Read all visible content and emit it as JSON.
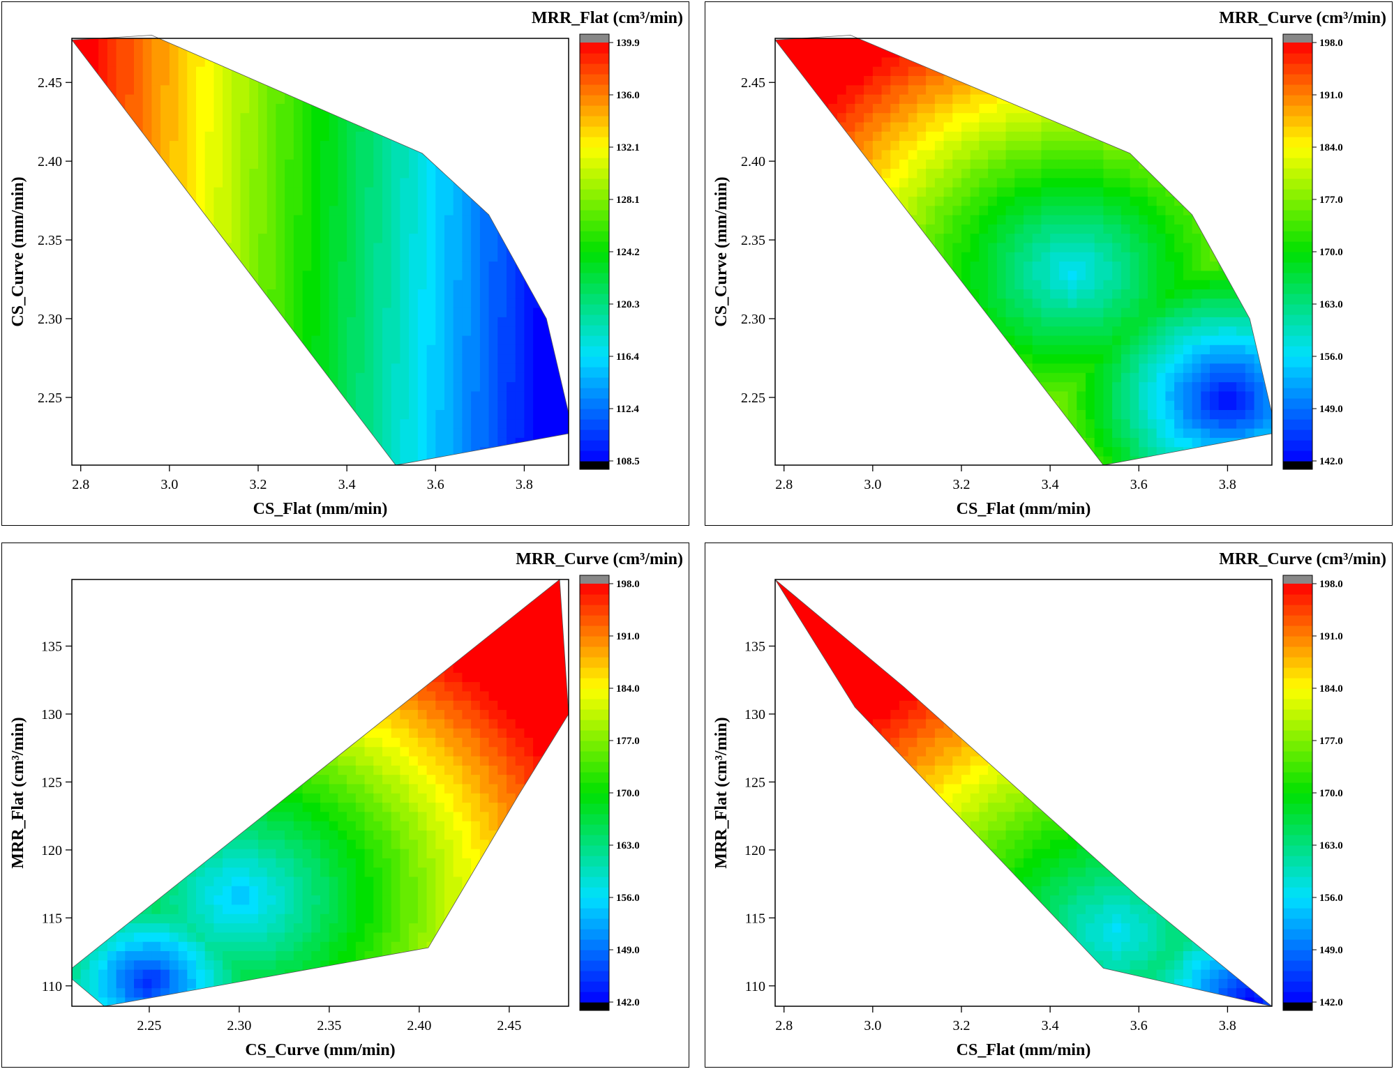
{
  "chart_data": [
    {
      "type": "heatmap",
      "subtype": "filled-contour",
      "title": "MRR_Flat (cm³/min)",
      "xlabel": "CS_Flat (mm/min)",
      "ylabel": "CS_Curve (mm/min)",
      "xlim": [
        2.78,
        3.9
      ],
      "ylim": [
        2.207,
        2.478
      ],
      "xticks": [
        "2.8",
        "3.0",
        "3.2",
        "3.4",
        "3.6",
        "3.8"
      ],
      "yticks": [
        "2.25",
        "2.30",
        "2.35",
        "2.40",
        "2.45"
      ],
      "colorbar": {
        "min": 108.5,
        "max": 139.9,
        "ticks": [
          "108.5",
          "112.4",
          "116.4",
          "120.3",
          "124.2",
          "128.1",
          "132.1",
          "136.0",
          "139.9"
        ]
      },
      "boundary": [
        [
          2.78,
          2.477
        ],
        [
          2.96,
          2.48
        ],
        [
          3.57,
          2.405
        ],
        [
          3.72,
          2.366
        ],
        [
          3.85,
          2.3
        ],
        [
          3.9,
          2.24
        ],
        [
          3.9,
          2.227
        ],
        [
          3.51,
          2.207
        ]
      ],
      "field": {
        "model": "linear",
        "base": 125.0,
        "gx": -30.0,
        "gy": 5.0,
        "x0": 3.3,
        "y0": 2.35
      },
      "colormap": [
        "#0000ff",
        "#00e0ff",
        "#00e000",
        "#ffff00",
        "#ff0000"
      ]
    },
    {
      "type": "heatmap",
      "subtype": "filled-contour",
      "title": "MRR_Curve (cm³/min)",
      "xlabel": "CS_Flat (mm/min)",
      "ylabel": "CS_Curve (mm/min)",
      "xlim": [
        2.78,
        3.9
      ],
      "ylim": [
        2.207,
        2.478
      ],
      "xticks": [
        "2.8",
        "3.0",
        "3.2",
        "3.4",
        "3.6",
        "3.8"
      ],
      "yticks": [
        "2.25",
        "2.30",
        "2.35",
        "2.40",
        "2.45"
      ],
      "colorbar": {
        "min": 142.0,
        "max": 198.0,
        "ticks": [
          "142.0",
          "149.0",
          "156.0",
          "163.0",
          "170.0",
          "177.0",
          "184.0",
          "191.0",
          "198.0"
        ]
      },
      "boundary": [
        [
          2.78,
          2.477
        ],
        [
          2.95,
          2.48
        ],
        [
          3.58,
          2.405
        ],
        [
          3.72,
          2.366
        ],
        [
          3.85,
          2.3
        ],
        [
          3.9,
          2.24
        ],
        [
          3.9,
          2.227
        ],
        [
          3.52,
          2.207
        ]
      ],
      "field": {
        "model": "blob",
        "base": 198.0,
        "falloff": 0.35,
        "centers": [
          [
            3.45,
            2.33,
            42.0,
            0.28
          ],
          [
            3.8,
            2.25,
            56.0,
            0.2
          ]
        ]
      },
      "colormap": [
        "#0000ff",
        "#00e0ff",
        "#00e000",
        "#ffff00",
        "#ff0000"
      ]
    },
    {
      "type": "heatmap",
      "subtype": "filled-contour",
      "title": "MRR_Curve (cm³/min)",
      "xlabel": "CS_Curve (mm/min)",
      "ylabel": "MRR_Flat (cm³/min)",
      "xlim": [
        2.207,
        2.483
      ],
      "ylim": [
        108.5,
        139.9
      ],
      "xticks": [
        "2.25",
        "2.30",
        "2.35",
        "2.40",
        "2.45"
      ],
      "yticks": [
        "110",
        "115",
        "120",
        "125",
        "130",
        "135"
      ],
      "colorbar": {
        "min": 142.0,
        "max": 198.0,
        "ticks": [
          "142.0",
          "149.0",
          "156.0",
          "163.0",
          "170.0",
          "177.0",
          "184.0",
          "191.0",
          "198.0"
        ]
      },
      "boundary": [
        [
          2.207,
          111.3
        ],
        [
          2.478,
          139.9
        ],
        [
          2.483,
          130.0
        ],
        [
          2.455,
          124.0
        ],
        [
          2.405,
          112.8
        ],
        [
          2.225,
          108.5
        ],
        [
          2.207,
          110.5
        ]
      ],
      "field": {
        "model": "blob",
        "base": 198.0,
        "falloff": 0.35,
        "centers": [
          [
            2.3,
            116.5,
            44.0,
            0.35
          ],
          [
            2.25,
            110.3,
            54.0,
            0.12
          ]
        ]
      },
      "colormap": [
        "#0000ff",
        "#00e0ff",
        "#00e000",
        "#ffff00",
        "#ff0000"
      ]
    },
    {
      "type": "heatmap",
      "subtype": "filled-contour",
      "title": "MRR_Curve (cm³/min)",
      "xlabel": "CS_Flat (mm/min)",
      "ylabel": "MRR_Flat (cm³/min)",
      "xlim": [
        2.78,
        3.9
      ],
      "ylim": [
        108.5,
        139.9
      ],
      "xticks": [
        "2.8",
        "3.0",
        "3.2",
        "3.4",
        "3.6",
        "3.8"
      ],
      "yticks": [
        "110",
        "115",
        "120",
        "125",
        "130",
        "135"
      ],
      "colorbar": {
        "min": 142.0,
        "max": 198.0,
        "ticks": [
          "142.0",
          "149.0",
          "156.0",
          "163.0",
          "170.0",
          "177.0",
          "184.0",
          "191.0",
          "198.0"
        ]
      },
      "boundary": [
        [
          2.78,
          139.9
        ],
        [
          3.07,
          132.0
        ],
        [
          3.6,
          116.5
        ],
        [
          3.9,
          108.5
        ],
        [
          3.52,
          111.3
        ],
        [
          2.96,
          130.5
        ]
      ],
      "field": {
        "model": "blob",
        "base": 198.0,
        "falloff": 0.4,
        "centers": [
          [
            3.55,
            114.0,
            42.0,
            0.3
          ],
          [
            3.85,
            109.0,
            56.0,
            0.12
          ]
        ]
      },
      "colormap": [
        "#0000ff",
        "#00e0ff",
        "#00e000",
        "#ffff00",
        "#ff0000"
      ]
    }
  ]
}
